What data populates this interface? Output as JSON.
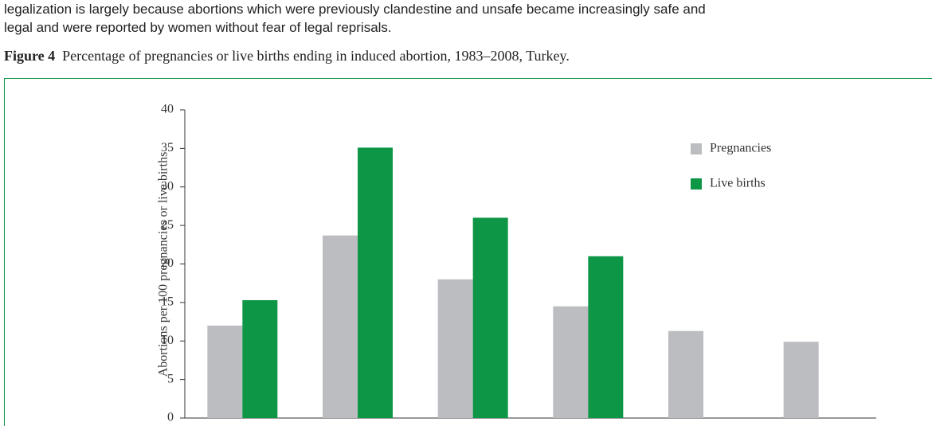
{
  "text": {
    "lines": [
      "legalization is largely because abortions which were previously clandestine and unsafe became increasingly safe and",
      "legal and were reported by women without fear of legal reprisals."
    ]
  },
  "figure": {
    "label": "Figure 4",
    "caption": "Percentage of pregnancies or live births ending in induced abortion, 1983–2008, Turkey."
  },
  "chart_data": {
    "type": "bar",
    "y_label": "Abortions per 100 pregnancies or live births",
    "categories": [
      null,
      null,
      null,
      null,
      null,
      null
    ],
    "series": [
      {
        "name": "Pregnancies",
        "color": "#bcbdc0",
        "values": [
          12,
          23.7,
          18,
          14.5,
          11.3,
          9.9
        ]
      },
      {
        "name": "Live births",
        "color": "#0e9647",
        "values": [
          15.3,
          35.1,
          26,
          21,
          null,
          null
        ]
      }
    ],
    "ylim": [
      0,
      40
    ],
    "yticks": [
      0,
      5,
      10,
      15,
      20,
      25,
      30,
      35,
      40
    ],
    "legend": "upper right"
  }
}
